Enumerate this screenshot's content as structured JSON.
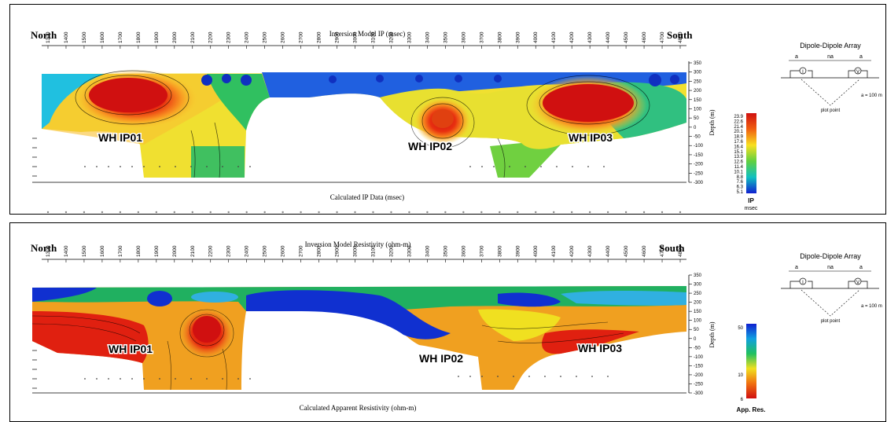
{
  "ip_panel": {
    "north": "North",
    "south": "South",
    "title": "Inversion Model IP (msec)",
    "subtitle": "Calculated IP Data (msec)",
    "depth_label": "Depth (m)",
    "stations": [
      "1300",
      "1400",
      "1500",
      "1600",
      "1700",
      "1800",
      "1900",
      "2000",
      "2100",
      "2200",
      "2300",
      "2400",
      "2500",
      "2600",
      "2700",
      "2800",
      "2900",
      "3000",
      "3100",
      "3200",
      "3300",
      "3400",
      "3500",
      "3600",
      "3700",
      "3800",
      "3900",
      "4000",
      "4100",
      "4200",
      "4300",
      "4400",
      "4500",
      "4600",
      "4700",
      "4800"
    ],
    "depth_ticks": [
      "350",
      "300",
      "250",
      "200",
      "150",
      "100",
      "50",
      "0",
      "-50",
      "-100",
      "-150",
      "-200",
      "-250",
      "-300"
    ],
    "targets": [
      "WH IP01",
      "WH IP02",
      "WH IP03"
    ],
    "legend": {
      "values": [
        "23.9",
        "22.6",
        "21.4",
        "20.1",
        "18.9",
        "17.6",
        "16.4",
        "15.1",
        "13.9",
        "12.6",
        "11.4",
        "10.1",
        "8.8",
        "7.6",
        "6.3",
        "5.1"
      ],
      "title": "IP",
      "unit": "msec"
    },
    "array": {
      "title": "Dipole-Dipole Array",
      "a1": "a",
      "na": "na",
      "a2": "a",
      "i": "I",
      "v": "V",
      "spacing": "a = 100 m",
      "plot_point": "plot point"
    }
  },
  "res_panel": {
    "north": "North",
    "south": "South",
    "title": "Inversion Model Resistivity (ohm-m)",
    "subtitle": "Calculated Apparent Resistivity (ohm-m)",
    "depth_label": "Depth (m)",
    "stations": [
      "1300",
      "1400",
      "1500",
      "1600",
      "1700",
      "1800",
      "1900",
      "2000",
      "2100",
      "2200",
      "2300",
      "2400",
      "2500",
      "2600",
      "2700",
      "2800",
      "2900",
      "3000",
      "3100",
      "3200",
      "3300",
      "3400",
      "3500",
      "3600",
      "3700",
      "3800",
      "3900",
      "4000",
      "4100",
      "4200",
      "4300",
      "4400",
      "4500",
      "4600",
      "4700",
      "4800"
    ],
    "depth_ticks": [
      "350",
      "300",
      "250",
      "200",
      "150",
      "100",
      "50",
      "0",
      "-50",
      "-100",
      "-150",
      "-200",
      "-250",
      "-300"
    ],
    "targets": [
      "WH IP01",
      "WH IP02",
      "WH IP03"
    ],
    "legend": {
      "values": [
        "50",
        "10",
        "6"
      ],
      "title": "App. Res."
    },
    "array": {
      "title": "Dipole-Dipole Array",
      "a1": "a",
      "na": "na",
      "a2": "a",
      "i": "I",
      "v": "V",
      "spacing": "a = 100 m",
      "plot_point": "plot point"
    }
  },
  "colors": {
    "high": "#e01818",
    "mid": "#f5f020",
    "low": "#1030d0",
    "green": "#20c040"
  }
}
